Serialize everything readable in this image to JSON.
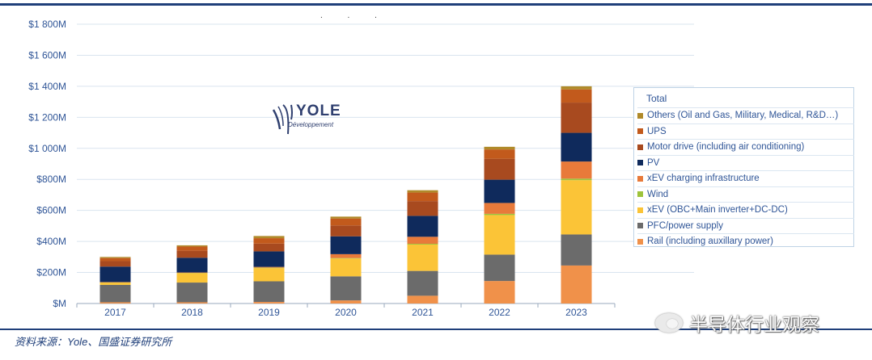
{
  "chart_data": {
    "type": "bar",
    "stacked": true,
    "categories": [
      "2017",
      "2018",
      "2019",
      "2020",
      "2021",
      "2022",
      "2023"
    ],
    "y_ticks": [
      "$M",
      "$200M",
      "$400M",
      "$600M",
      "$800M",
      "$1 000M",
      "$1 200M",
      "$1 400M",
      "$1 600M",
      "$1 800M"
    ],
    "ylim": [
      0,
      1800
    ],
    "grid": true,
    "legend_title": "Total",
    "series": [
      {
        "name": "Rail (including auxillary power)",
        "color": "#f0914a",
        "values": [
          8,
          8,
          10,
          20,
          50,
          145,
          245
        ]
      },
      {
        "name": "PFC/power supply",
        "color": "#6b6b6b",
        "values": [
          112,
          127,
          133,
          155,
          160,
          170,
          200
        ]
      },
      {
        "name": "xEV (OBC+Main inverter+DC-DC)",
        "color": "#fbc437",
        "values": [
          15,
          60,
          85,
          115,
          170,
          255,
          350
        ]
      },
      {
        "name": "Wind",
        "color": "#9dc33b",
        "values": [
          1,
          2,
          3,
          3,
          5,
          8,
          10
        ]
      },
      {
        "name": "xEV charging infrastructure",
        "color": "#e87a3a",
        "values": [
          2,
          3,
          5,
          25,
          45,
          70,
          110
        ]
      },
      {
        "name": "PV",
        "color": "#0f2a5c",
        "values": [
          100,
          95,
          100,
          115,
          135,
          150,
          185
        ]
      },
      {
        "name": "Motor drive (including air conditioning)",
        "color": "#a84a1f",
        "values": [
          35,
          45,
          50,
          70,
          95,
          135,
          195
        ]
      },
      {
        "name": "UPS",
        "color": "#c25a1c",
        "values": [
          20,
          27,
          35,
          45,
          55,
          60,
          85
        ]
      },
      {
        "name": "Others (Oil and Gas, Military, Medical, R&D…)",
        "color": "#b08a2a",
        "values": [
          7,
          8,
          14,
          12,
          15,
          17,
          20
        ]
      }
    ]
  },
  "logo": {
    "name": "YOLE",
    "subtitle": "Développement"
  },
  "source": "资料来源：Yole、国盛证券研究所",
  "watermark": "半导体行业观察",
  "header_dots": ". . ."
}
